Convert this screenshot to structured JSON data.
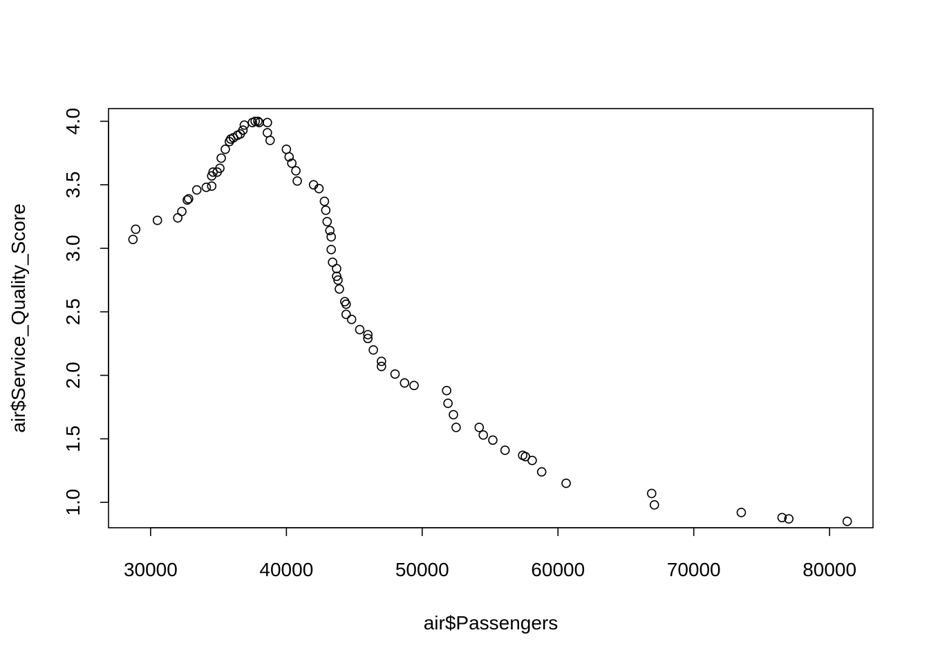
{
  "chart_data": {
    "type": "scatter",
    "title": "",
    "xlabel": "air$Passengers",
    "ylabel": "air$Service_Quality_Score",
    "xlim": [
      26900,
      83200
    ],
    "ylim": [
      0.8,
      4.1
    ],
    "x_ticks": [
      30000,
      40000,
      50000,
      60000,
      70000,
      80000
    ],
    "x_tick_labels": [
      "30000",
      "40000",
      "50000",
      "60000",
      "70000",
      "80000"
    ],
    "y_ticks": [
      1.0,
      1.5,
      2.0,
      2.5,
      3.0,
      3.5,
      4.0
    ],
    "y_tick_labels": [
      "1.0",
      "1.5",
      "2.0",
      "2.5",
      "3.0",
      "3.5",
      "4.0"
    ],
    "grid": false,
    "legend": "none",
    "marker": "open-circle",
    "colors": {
      "marker": "#000000",
      "axis": "#000000",
      "background": "#ffffff"
    },
    "points": [
      [
        28700,
        3.07
      ],
      [
        28900,
        3.15
      ],
      [
        30500,
        3.22
      ],
      [
        32000,
        3.24
      ],
      [
        32300,
        3.29
      ],
      [
        32700,
        3.38
      ],
      [
        32800,
        3.39
      ],
      [
        33400,
        3.46
      ],
      [
        34100,
        3.48
      ],
      [
        34500,
        3.49
      ],
      [
        34500,
        3.57
      ],
      [
        34600,
        3.6
      ],
      [
        34900,
        3.6
      ],
      [
        35100,
        3.63
      ],
      [
        35200,
        3.71
      ],
      [
        35500,
        3.78
      ],
      [
        35800,
        3.84
      ],
      [
        35900,
        3.86
      ],
      [
        36100,
        3.87
      ],
      [
        36400,
        3.89
      ],
      [
        36600,
        3.9
      ],
      [
        36800,
        3.93
      ],
      [
        36900,
        3.97
      ],
      [
        37500,
        3.99
      ],
      [
        37700,
        4.0
      ],
      [
        37900,
        4.0
      ],
      [
        38000,
        3.99
      ],
      [
        38600,
        3.99
      ],
      [
        38600,
        3.91
      ],
      [
        38800,
        3.85
      ],
      [
        40000,
        3.78
      ],
      [
        40200,
        3.72
      ],
      [
        40400,
        3.67
      ],
      [
        40700,
        3.61
      ],
      [
        40800,
        3.53
      ],
      [
        42000,
        3.5
      ],
      [
        42400,
        3.47
      ],
      [
        42800,
        3.37
      ],
      [
        42900,
        3.3
      ],
      [
        43000,
        3.21
      ],
      [
        43200,
        3.14
      ],
      [
        43300,
        3.09
      ],
      [
        43300,
        2.99
      ],
      [
        43400,
        2.89
      ],
      [
        43700,
        2.84
      ],
      [
        43700,
        2.78
      ],
      [
        43800,
        2.75
      ],
      [
        43900,
        2.68
      ],
      [
        44300,
        2.58
      ],
      [
        44400,
        2.56
      ],
      [
        44400,
        2.48
      ],
      [
        44800,
        2.44
      ],
      [
        45400,
        2.36
      ],
      [
        46000,
        2.32
      ],
      [
        46000,
        2.29
      ],
      [
        46400,
        2.2
      ],
      [
        47000,
        2.11
      ],
      [
        47000,
        2.07
      ],
      [
        48000,
        2.01
      ],
      [
        48700,
        1.94
      ],
      [
        49400,
        1.92
      ],
      [
        51800,
        1.88
      ],
      [
        51900,
        1.78
      ],
      [
        52300,
        1.69
      ],
      [
        52500,
        1.59
      ],
      [
        54200,
        1.59
      ],
      [
        54500,
        1.53
      ],
      [
        55200,
        1.49
      ],
      [
        56100,
        1.41
      ],
      [
        57400,
        1.37
      ],
      [
        57600,
        1.36
      ],
      [
        58100,
        1.33
      ],
      [
        58800,
        1.24
      ],
      [
        60600,
        1.15
      ],
      [
        66900,
        1.07
      ],
      [
        67100,
        0.98
      ],
      [
        73500,
        0.92
      ],
      [
        76500,
        0.88
      ],
      [
        77000,
        0.87
      ],
      [
        81300,
        0.85
      ]
    ]
  }
}
